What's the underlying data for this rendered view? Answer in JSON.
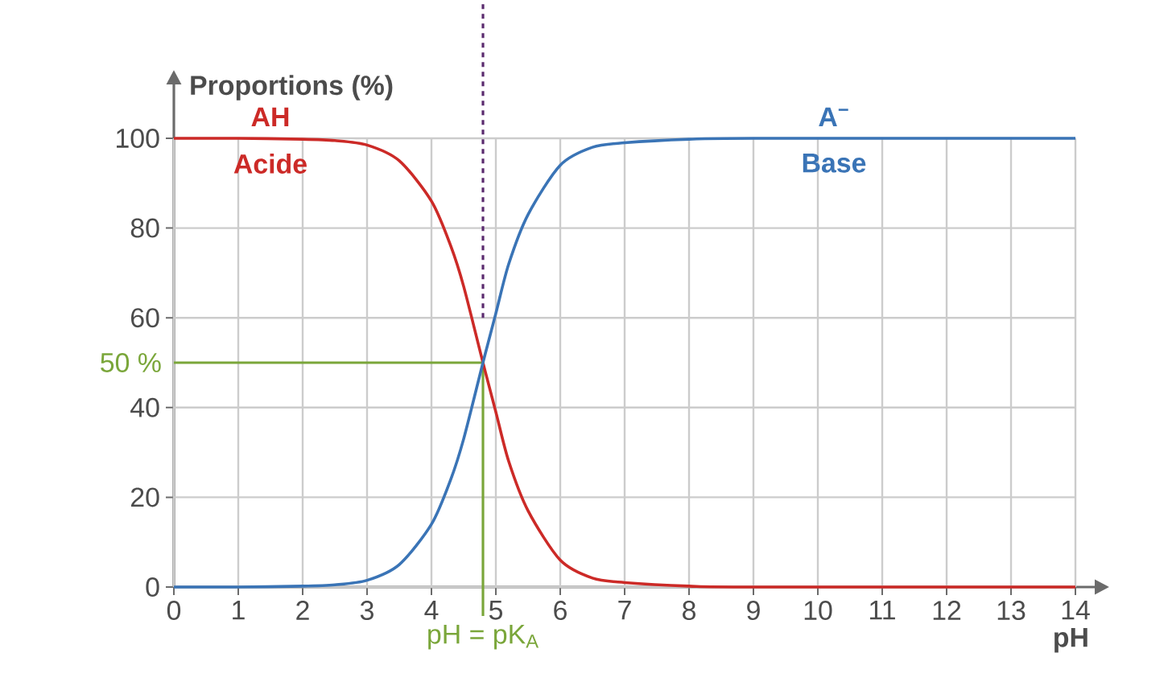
{
  "chart_data": {
    "type": "line",
    "xlabel": "pH",
    "ylabel": "Proportions (%)",
    "xlim": [
      0,
      14.3
    ],
    "ylim": [
      0,
      112
    ],
    "xticks": [
      0,
      1,
      2,
      3,
      4,
      5,
      6,
      7,
      8,
      9,
      10,
      11,
      12,
      13,
      14
    ],
    "yticks": [
      0,
      20,
      40,
      60,
      80,
      100
    ],
    "grid": true,
    "series": [
      {
        "name": "AH",
        "color": "#cc2a27",
        "x": [
          0,
          1,
          2,
          2.5,
          3,
          3.5,
          4,
          4.3,
          4.5,
          4.8,
          5,
          5.2,
          5.5,
          6,
          6.5,
          7,
          8,
          9,
          14
        ],
        "values": [
          100,
          100,
          99.8,
          99.5,
          98.5,
          95,
          86,
          76,
          67,
          50,
          39,
          28,
          17,
          6,
          2,
          1,
          0.2,
          0,
          0
        ]
      },
      {
        "name": "A$^{−}$",
        "color": "#3a74b6",
        "x": [
          0,
          1,
          2,
          2.5,
          3,
          3.5,
          4,
          4.3,
          4.5,
          4.8,
          5,
          5.2,
          5.5,
          6,
          6.5,
          7,
          8,
          9,
          14
        ],
        "values": [
          0,
          0,
          0.2,
          0.5,
          1.5,
          5,
          14,
          24,
          33,
          50,
          61,
          72,
          83,
          94,
          98,
          99,
          99.8,
          100,
          100
        ]
      }
    ],
    "annotations": [
      "Acide",
      "Base"
    ],
    "ref_lines": [
      {
        "axis": "y",
        "value": 50,
        "label": "50 %",
        "color": "#7aa63a"
      },
      {
        "axis": "x",
        "value": 4.8,
        "label": "pH = pK$_{A}$",
        "color": "#7aa63a"
      },
      {
        "axis": "x",
        "value": 4.8,
        "color": "#5a2a6e",
        "line_style": "dotted"
      }
    ]
  }
}
